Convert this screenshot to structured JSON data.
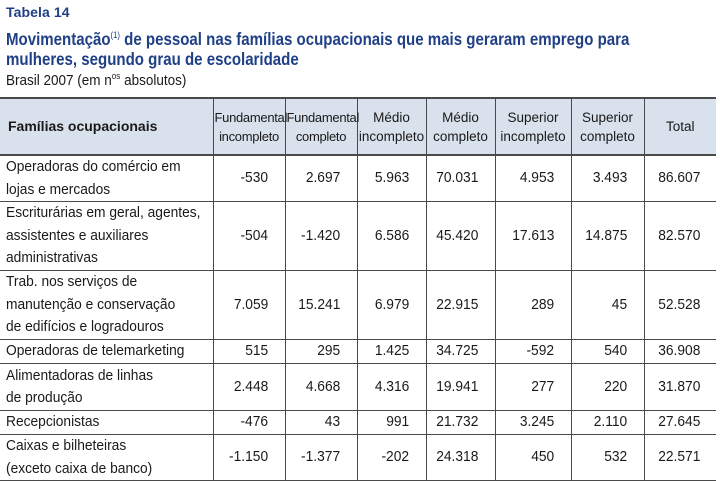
{
  "table_label": "Tabela 14",
  "title": {
    "main_before": "Movimentação",
    "footnote_ref": "(1)",
    "main_after": " de pessoal nas famílias ocupacionais que mais geraram emprego para",
    "line2": "mulheres, segundo grau de escolaridade"
  },
  "subtitle": {
    "before": "Brasil 2007 (em n",
    "sup": "os",
    "after": " absolutos)"
  },
  "columns": {
    "c0": "Famílias ocupacionais",
    "c1a": "Fundamental",
    "c1b": "incompleto",
    "c2a": "Fundamental",
    "c2b": "completo",
    "c3a": "Médio",
    "c3b": "incompleto",
    "c4a": "Médio",
    "c4b": "completo",
    "c5a": "Superior",
    "c5b": "incompleto",
    "c6a": "Superior",
    "c6b": "completo",
    "c7": "Total"
  },
  "rows": [
    {
      "l1": "Operadoras do comércio em",
      "l2": "lojas e mercados",
      "l3": "",
      "v": [
        "-530",
        "2.697",
        "5.963",
        "70.031",
        "4.953",
        "3.493",
        "86.607"
      ]
    },
    {
      "l1": "Escriturárias em geral, agentes,",
      "l2": "assistentes e auxiliares",
      "l3": "administrativas",
      "v": [
        "-504",
        "-1.420",
        "6.586",
        "45.420",
        "17.613",
        "14.875",
        "82.570"
      ]
    },
    {
      "l1": "Trab. nos serviços de",
      "l2": "manutenção e conservação",
      "l3": "de edifícios e logradouros",
      "v": [
        "7.059",
        "15.241",
        "6.979",
        "22.915",
        "289",
        "45",
        "52.528"
      ]
    },
    {
      "l1": "Operadoras de telemarketing",
      "l2": "",
      "l3": "",
      "v": [
        "515",
        "295",
        "1.425",
        "34.725",
        "-592",
        "540",
        "36.908"
      ]
    },
    {
      "l1": "Alimentadoras de linhas",
      "l2": "de produção",
      "l3": "",
      "v": [
        "2.448",
        "4.668",
        "4.316",
        "19.941",
        "277",
        "220",
        "31.870"
      ]
    },
    {
      "l1": "Recepcionistas",
      "l2": "",
      "l3": "",
      "v": [
        "-476",
        "43",
        "991",
        "21.732",
        "3.245",
        "2.110",
        "27.645"
      ]
    },
    {
      "l1": "Caixas e bilheteiras",
      "l2": "(exceto caixa de banco)",
      "l3": "",
      "v": [
        "-1.150",
        "-1.377",
        "-202",
        "24.318",
        "450",
        "532",
        "22.571"
      ]
    }
  ]
}
